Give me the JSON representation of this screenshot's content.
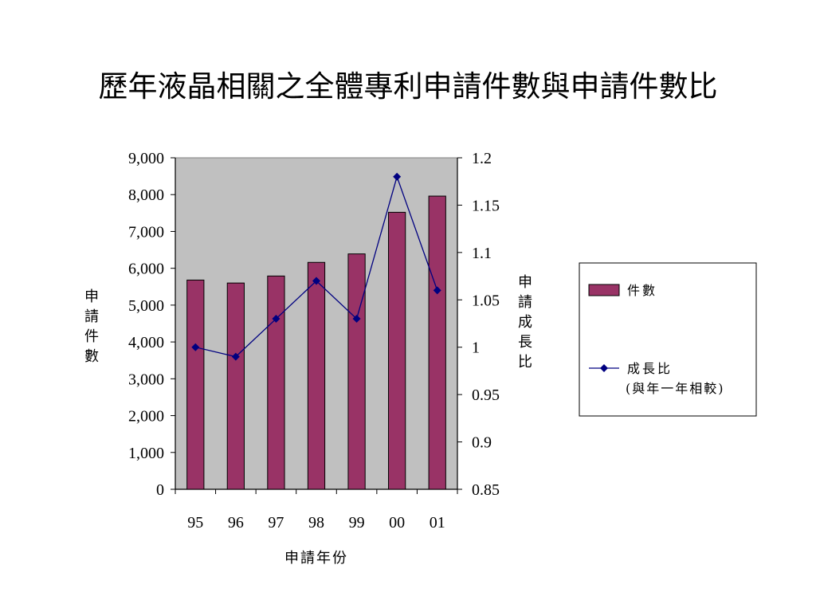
{
  "slide": {
    "title": "歷年液晶相關之全體專利申請件數與申請件數比"
  },
  "chart_data": {
    "type": "bar+line",
    "title": "",
    "xlabel": "申請年份",
    "ylabel": "申請件數",
    "y2label": "申請成長比",
    "categories": [
      "95",
      "96",
      "97",
      "98",
      "99",
      "00",
      "01"
    ],
    "series": [
      {
        "name": "件數",
        "type": "bar",
        "axis": "left",
        "color": "#993366",
        "values": [
          5680,
          5600,
          5790,
          6160,
          6390,
          7520,
          7960
        ]
      },
      {
        "name": "成長比",
        "name_line2": "(與年一年相較)",
        "type": "line",
        "axis": "right",
        "color": "#000080",
        "values": [
          1.0,
          0.99,
          1.03,
          1.07,
          1.03,
          1.18,
          1.06
        ]
      }
    ],
    "ylim": [
      0,
      9000
    ],
    "y_ticks": [
      "0",
      "1,000",
      "2,000",
      "3,000",
      "4,000",
      "5,000",
      "6,000",
      "7,000",
      "8,000",
      "9,000"
    ],
    "y2lim": [
      0.85,
      1.2
    ],
    "y2_ticks": [
      "0.85",
      "0.9",
      "0.95",
      "1",
      "1.05",
      "1.1",
      "1.15",
      "1.2"
    ],
    "plot_background": "#c0c0c0",
    "grid": false,
    "legend_position": "right"
  }
}
